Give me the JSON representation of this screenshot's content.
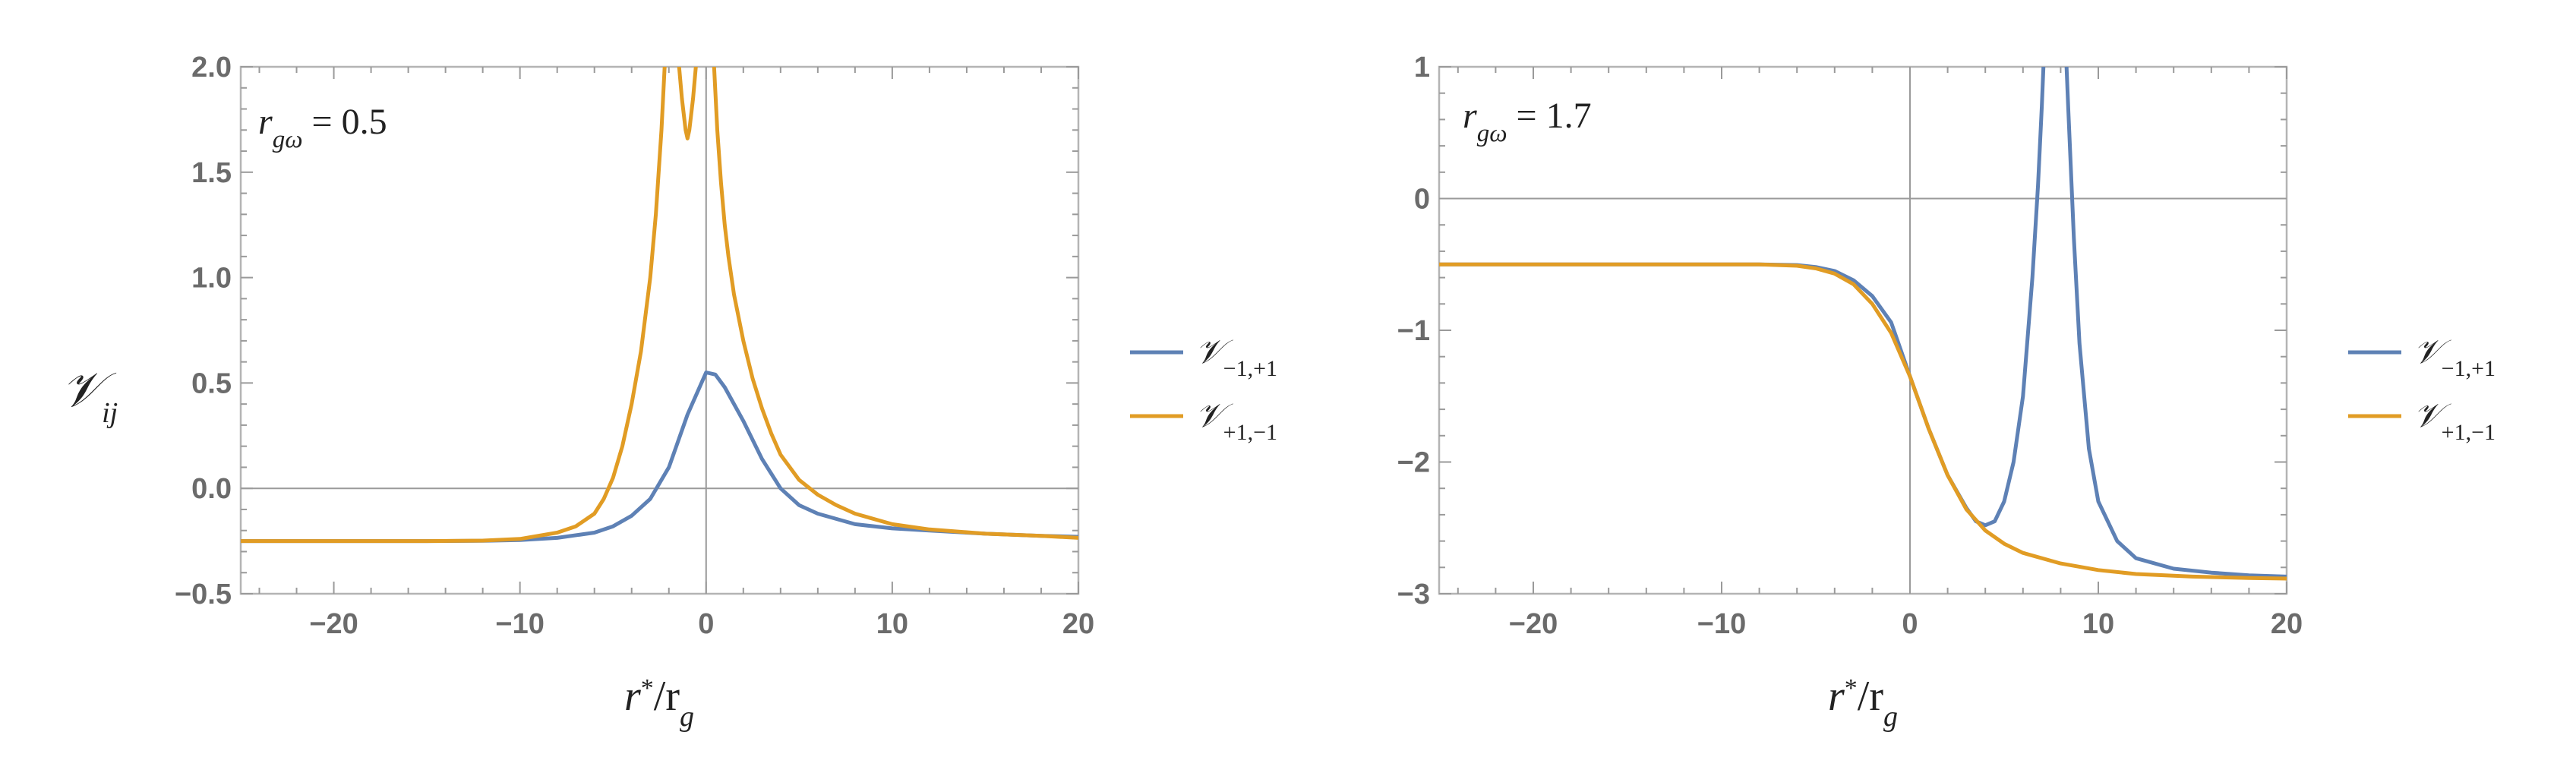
{
  "chart_data": [
    {
      "type": "line",
      "annotation": "r_g ω = 0.5",
      "xlabel": "r*/r_g",
      "ylabel": "V_ij",
      "xlim": [
        -25,
        20
      ],
      "ylim": [
        -0.5,
        2.0
      ],
      "xticks": [
        -20,
        -10,
        0,
        10,
        20
      ],
      "xtick_labels": [
        "−20",
        "−10",
        "0",
        "10",
        "20"
      ],
      "yticks": [
        -0.5,
        0.0,
        0.5,
        1.0,
        1.5,
        2.0
      ],
      "ytick_labels": [
        "−0.5",
        "0.0",
        "0.5",
        "1.0",
        "1.5",
        "2.0"
      ],
      "grid": false,
      "legend_position": "right",
      "series": [
        {
          "name": "V_{-1,+1}",
          "color": "#5e81b5",
          "x": [
            -25,
            -20,
            -15,
            -12,
            -10,
            -8,
            -6,
            -5,
            -4,
            -3,
            -2,
            -1,
            0,
            0.5,
            1,
            2,
            3,
            4,
            5,
            6,
            8,
            10,
            12,
            15,
            18,
            20
          ],
          "y": [
            -0.25,
            -0.25,
            -0.25,
            -0.249,
            -0.245,
            -0.235,
            -0.21,
            -0.18,
            -0.13,
            -0.05,
            0.1,
            0.35,
            0.55,
            0.54,
            0.48,
            0.32,
            0.14,
            0.0,
            -0.08,
            -0.12,
            -0.17,
            -0.19,
            -0.2,
            -0.215,
            -0.225,
            -0.23
          ]
        },
        {
          "name": "V_{+1,-1}",
          "color": "#e19c24",
          "x": [
            -25,
            -20,
            -15,
            -12,
            -10,
            -8,
            -7,
            -6,
            -5.5,
            -5,
            -4.5,
            -4,
            -3.5,
            -3,
            -2.7,
            -2.4,
            -2.2,
            -1.5,
            -1.3,
            -1.1,
            -1.0,
            -0.9,
            -0.7,
            -0.5,
            0.4,
            0.6,
            0.8,
            1,
            1.2,
            1.5,
            2,
            2.5,
            3,
            3.5,
            4,
            5,
            6,
            7,
            8,
            10,
            12,
            15,
            18,
            20
          ],
          "y": [
            -0.25,
            -0.25,
            -0.25,
            -0.248,
            -0.24,
            -0.21,
            -0.18,
            -0.12,
            -0.05,
            0.05,
            0.2,
            0.4,
            0.65,
            1.0,
            1.3,
            1.7,
            2.05,
            2.05,
            1.85,
            1.7,
            1.66,
            1.7,
            1.85,
            2.05,
            2.05,
            1.7,
            1.45,
            1.25,
            1.1,
            0.92,
            0.7,
            0.52,
            0.38,
            0.26,
            0.16,
            0.04,
            -0.03,
            -0.08,
            -0.12,
            -0.17,
            -0.195,
            -0.215,
            -0.225,
            -0.235
          ]
        }
      ]
    },
    {
      "type": "line",
      "annotation": "r_g ω = 1.7",
      "xlabel": "r*/r_g",
      "ylabel": "",
      "xlim": [
        -25,
        20
      ],
      "ylim": [
        -3,
        1
      ],
      "xticks": [
        -20,
        -10,
        0,
        10,
        20
      ],
      "xtick_labels": [
        "−20",
        "−10",
        "0",
        "10",
        "20"
      ],
      "yticks": [
        -3,
        -2,
        -1,
        0,
        1
      ],
      "ytick_labels": [
        "−3",
        "−2",
        "−1",
        "0",
        "1"
      ],
      "grid": false,
      "legend_position": "right",
      "series": [
        {
          "name": "V_{-1,+1}",
          "color": "#5e81b5",
          "x": [
            -25,
            -15,
            -10,
            -8,
            -6,
            -5,
            -4,
            -3,
            -2,
            -1,
            0,
            1,
            2,
            3,
            3.5,
            4,
            4.5,
            5,
            5.5,
            6,
            6.5,
            6.8,
            7.0,
            7.1,
            7.2,
            8.2,
            8.3,
            8.4,
            8.7,
            9,
            9.5,
            10,
            11,
            12,
            14,
            16,
            18,
            20
          ],
          "y": [
            -0.5,
            -0.5,
            -0.5,
            -0.5,
            -0.505,
            -0.52,
            -0.55,
            -0.62,
            -0.74,
            -0.94,
            -1.35,
            -1.75,
            -2.1,
            -2.35,
            -2.45,
            -2.48,
            -2.45,
            -2.3,
            -2.0,
            -1.5,
            -0.6,
            0.1,
            0.7,
            1.05,
            1.1,
            1.1,
            1.05,
            0.7,
            -0.3,
            -1.1,
            -1.9,
            -2.3,
            -2.6,
            -2.73,
            -2.81,
            -2.84,
            -2.86,
            -2.87
          ]
        },
        {
          "name": "V_{+1,-1}",
          "color": "#e19c24",
          "x": [
            -25,
            -15,
            -10,
            -8,
            -6,
            -5,
            -4,
            -3,
            -2,
            -1,
            0,
            1,
            2,
            3,
            4,
            5,
            6,
            8,
            10,
            12,
            15,
            18,
            20
          ],
          "y": [
            -0.5,
            -0.5,
            -0.5,
            -0.5,
            -0.51,
            -0.53,
            -0.57,
            -0.65,
            -0.8,
            -1.02,
            -1.35,
            -1.75,
            -2.1,
            -2.36,
            -2.52,
            -2.62,
            -2.69,
            -2.77,
            -2.82,
            -2.85,
            -2.87,
            -2.88,
            -2.885
          ]
        }
      ]
    }
  ]
}
